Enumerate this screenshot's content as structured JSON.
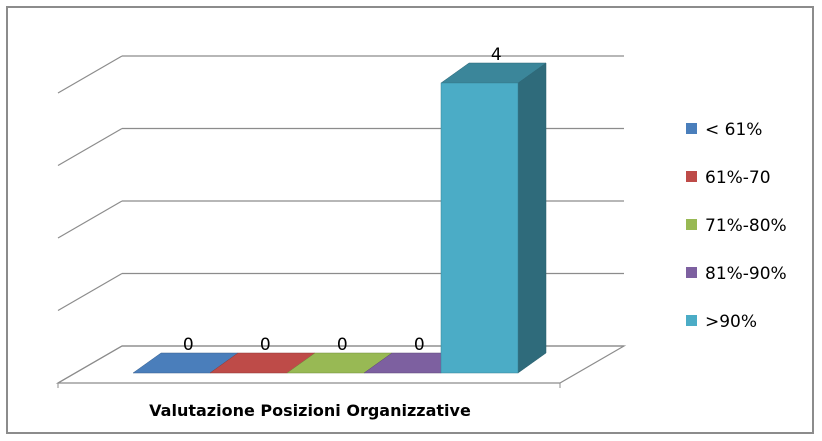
{
  "chart_data": {
    "type": "bar",
    "title": "",
    "xlabel": "Valutazione Posizioni Organizzative",
    "ylabel": "",
    "categories": [
      "Valutazione Posizioni Organizzative"
    ],
    "series": [
      {
        "name": "< 61%",
        "values": [
          0
        ],
        "color": "#4a7ebb"
      },
      {
        "name": "61%-70",
        "values": [
          0
        ],
        "color": "#be4b48"
      },
      {
        "name": "71%-80%",
        "values": [
          0
        ],
        "color": "#98b954"
      },
      {
        "name": "81%-90%",
        "values": [
          0
        ],
        "color": "#7d60a0"
      },
      {
        "name": ">90%",
        "values": [
          4
        ],
        "color": "#4bacc6"
      }
    ],
    "data_labels": [
      "0",
      "0",
      "0",
      "0",
      "4"
    ],
    "ylim": [
      0,
      4
    ],
    "grid": true,
    "legend": "right",
    "style": "3d-column"
  }
}
